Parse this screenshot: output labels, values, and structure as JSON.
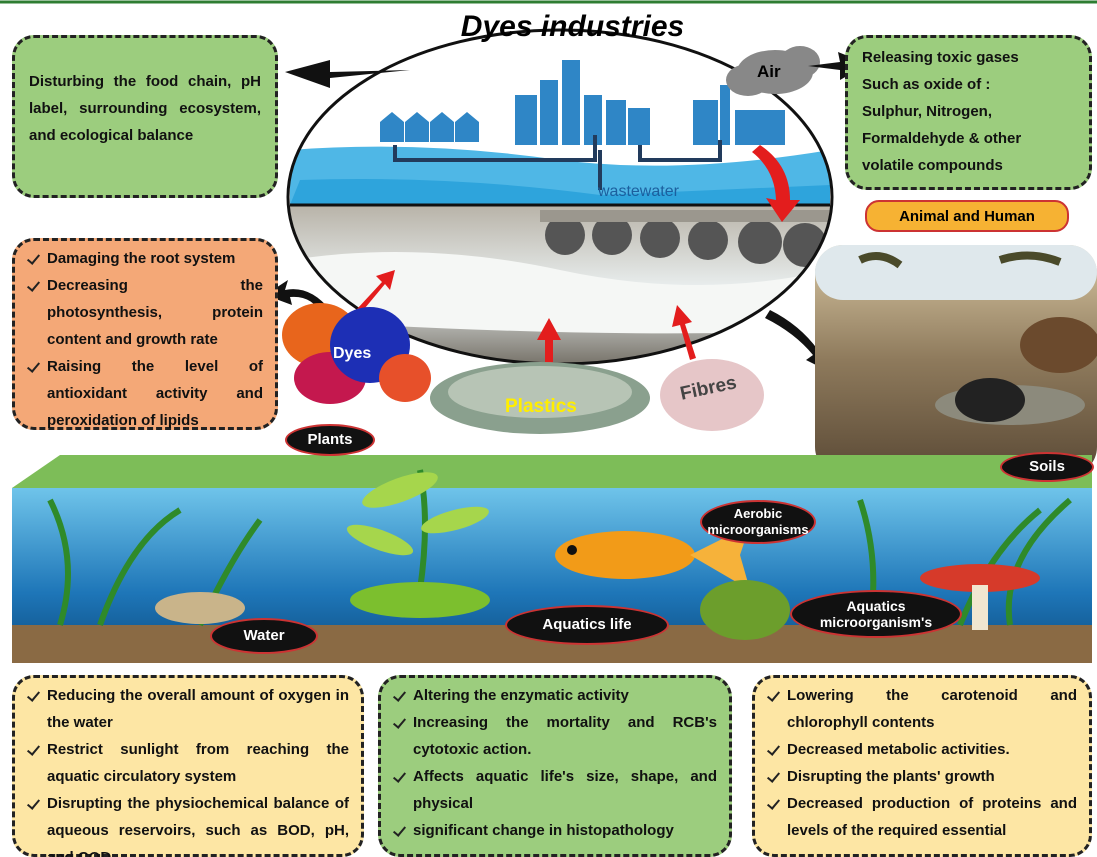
{
  "title": "Dyes industries",
  "top_left_box": "Disturbing the food chain, pH label, surrounding ecosystem, and ecological balance",
  "top_right_box": [
    "Releasing toxic gases",
    "Such as oxide of :",
    "Sulphur, Nitrogen,",
    "Formaldehyde & other",
    "volatile compounds"
  ],
  "left_box": [
    "Damaging the root system",
    "Decreasing the photosynthesis, protein content and growth rate",
    "Raising the level of antioxidant activity and peroxidation of lipids"
  ],
  "labels": {
    "air": "Air",
    "wastewater": "wastewater",
    "animal_human": "Animal and Human",
    "dyes": "Dyes",
    "plastics": "Plastics",
    "fibres": "Fibres",
    "plants": "Plants",
    "soils": "Soils",
    "aerobic": "Aerobic microorganisms",
    "aquatics_micro": "Aquatics microorganism's",
    "water": "Water",
    "aquatics_life": "Aquatics life"
  },
  "bottom_boxes": [
    [
      "Reducing the overall amount of oxygen in the water",
      "Restrict sunlight from reaching the aquatic circulatory system",
      "Disrupting the physiochemical balance of aqueous reservoirs, such as BOD, pH, and COD."
    ],
    [
      "Altering the enzymatic activity",
      "Increasing the mortality and RCB's cytotoxic action.",
      "Affects aquatic life's size, shape, and physical",
      "significant change in histopathology"
    ],
    [
      "Lowering the carotenoid and chlorophyll contents",
      "Decreased metabolic activities.",
      "Disrupting the plants' growth",
      "Decreased production of proteins and levels of the required essential"
    ]
  ]
}
